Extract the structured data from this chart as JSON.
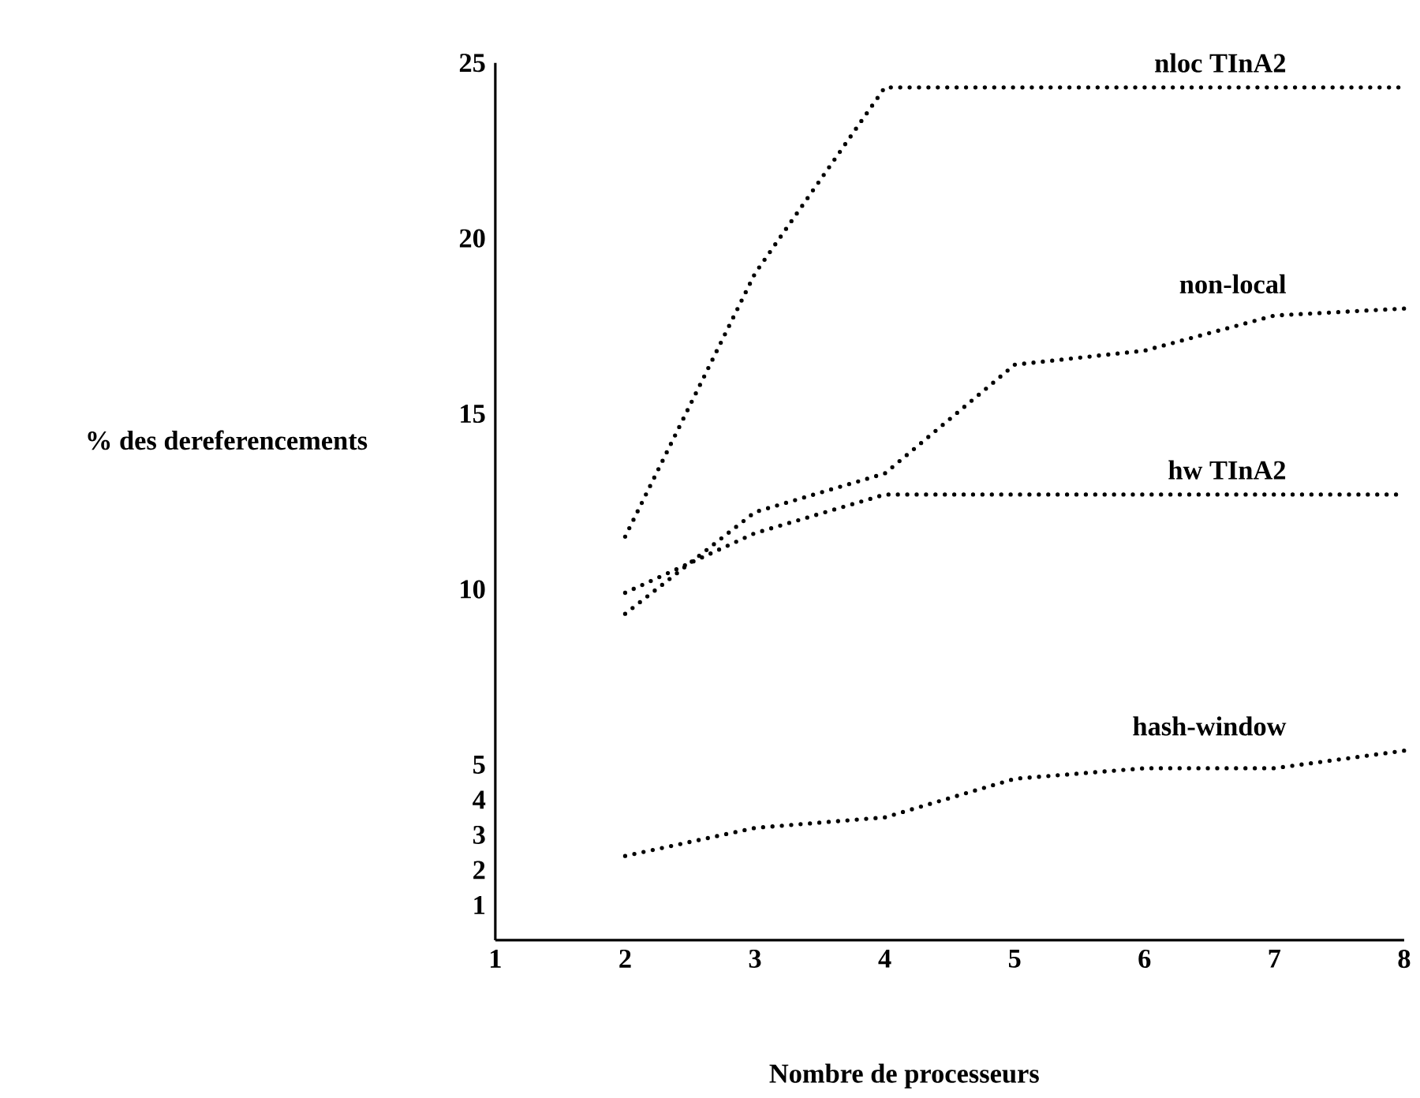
{
  "chart_data": {
    "type": "line",
    "xlabel": "Nombre de processeurs",
    "ylabel": "% des dereferencements",
    "x": [
      2,
      3,
      4,
      5,
      6,
      7,
      8
    ],
    "series": [
      {
        "name": "nloc TInA2",
        "color": "#000000",
        "values": [
          11.5,
          19.0,
          24.3,
          24.3,
          24.3,
          24.3,
          24.3
        ]
      },
      {
        "name": "non-local",
        "color": "#000000",
        "values": [
          9.3,
          12.2,
          13.3,
          16.4,
          16.8,
          17.8,
          18.0
        ]
      },
      {
        "name": "hw TInA2",
        "color": "#000000",
        "values": [
          9.9,
          11.6,
          12.7,
          12.7,
          12.7,
          12.7,
          12.7
        ]
      },
      {
        "name": "hash-window",
        "color": "#000000",
        "values": [
          2.4,
          3.2,
          3.5,
          4.6,
          4.9,
          4.9,
          5.4
        ]
      }
    ],
    "xlim": [
      1,
      8
    ],
    "ylim": [
      0,
      25
    ],
    "xticks": [
      1,
      2,
      3,
      4,
      5,
      6,
      7,
      8
    ],
    "yticks": [
      1,
      2,
      3,
      4,
      5,
      10,
      15,
      20,
      25
    ],
    "line_style": "dotted",
    "marker": "none",
    "grid": false,
    "legend": false
  }
}
